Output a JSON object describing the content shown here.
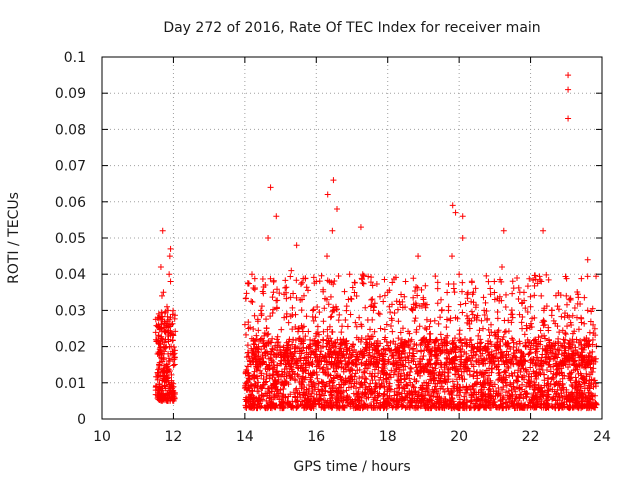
{
  "chart_data": {
    "type": "scatter",
    "title": "Day 272 of 2016, Rate Of TEC Index for receiver main",
    "xlabel": "GPS time / hours",
    "ylabel": "ROTI / TECUs",
    "xlim": [
      10,
      24
    ],
    "ylim": [
      0,
      0.1
    ],
    "x_ticks": [
      "10",
      "12",
      "14",
      "16",
      "18",
      "20",
      "22",
      "24"
    ],
    "y_ticks": [
      "0",
      "0.01",
      "0.02",
      "0.03",
      "0.04",
      "0.05",
      "0.06",
      "0.07",
      "0.08",
      "0.09",
      "0.1"
    ],
    "grid": true,
    "marker": "+",
    "color": "#ff0000",
    "series": [
      {
        "name": "ROTI",
        "x": [
          11.55,
          11.6,
          11.62,
          11.65,
          11.7,
          11.72,
          11.75,
          11.8,
          11.82,
          11.85,
          11.88,
          11.9,
          11.92,
          11.95,
          11.6,
          11.7,
          11.78,
          11.85,
          11.9,
          11.58,
          11.68,
          11.76,
          11.84,
          11.92,
          11.64,
          11.74,
          11.88,
          11.66,
          11.94,
          14.05,
          14.1,
          14.2,
          14.3,
          14.45,
          14.55,
          14.65,
          14.7,
          14.8,
          14.9,
          15.0,
          15.1,
          15.2,
          15.3,
          15.4,
          15.5,
          15.6,
          15.7,
          15.8,
          15.9,
          16.0,
          16.1,
          16.2,
          16.3,
          16.4,
          16.45,
          16.5,
          16.6,
          16.7,
          16.8,
          16.9,
          17.0,
          17.1,
          17.2,
          17.3,
          17.4,
          17.5,
          17.6,
          17.7,
          17.8,
          17.9,
          18.0,
          18.1,
          18.2,
          18.3,
          18.4,
          18.5,
          18.6,
          18.7,
          18.8,
          18.9,
          19.0,
          19.1,
          19.2,
          19.3,
          19.4,
          19.5,
          19.6,
          19.7,
          19.8,
          19.9,
          20.0,
          20.1,
          20.2,
          20.3,
          20.4,
          20.5,
          20.6,
          20.7,
          20.8,
          20.9,
          21.0,
          21.1,
          21.2,
          21.3,
          21.4,
          21.5,
          21.6,
          21.7,
          21.8,
          21.9,
          22.0,
          22.1,
          22.2,
          22.3,
          22.4,
          22.5,
          22.6,
          22.7,
          22.8,
          22.9,
          23.0,
          23.1,
          23.2,
          23.3,
          23.4,
          23.5,
          23.6,
          23.7,
          23.75,
          14.72,
          14.88,
          16.32,
          16.48,
          16.58,
          19.82,
          19.9,
          20.1,
          23.05,
          23.05,
          23.05,
          23.6,
          21.25,
          22.35,
          18.85,
          15.45,
          17.25,
          14.15,
          14.35,
          14.6,
          14.95,
          15.25,
          15.55,
          15.85,
          16.15,
          16.45,
          16.75,
          17.05,
          17.35,
          17.65,
          17.95,
          18.25,
          18.55,
          18.85,
          19.15,
          19.45,
          19.75,
          20.05,
          20.35,
          20.65,
          20.95,
          21.25,
          21.55,
          21.85,
          22.15,
          22.45,
          22.75,
          23.05,
          23.35,
          23.65
        ],
        "y": [
          0.008,
          0.015,
          0.028,
          0.042,
          0.052,
          0.035,
          0.012,
          0.02,
          0.031,
          0.018,
          0.026,
          0.045,
          0.038,
          0.01,
          0.006,
          0.022,
          0.024,
          0.03,
          0.016,
          0.012,
          0.034,
          0.009,
          0.027,
          0.047,
          0.019,
          0.014,
          0.04,
          0.025,
          0.007,
          0.01,
          0.025,
          0.04,
          0.015,
          0.03,
          0.02,
          0.05,
          0.012,
          0.035,
          0.022,
          0.008,
          0.028,
          0.018,
          0.041,
          0.011,
          0.025,
          0.033,
          0.015,
          0.02,
          0.009,
          0.038,
          0.014,
          0.027,
          0.045,
          0.012,
          0.052,
          0.03,
          0.018,
          0.024,
          0.01,
          0.033,
          0.02,
          0.015,
          0.028,
          0.04,
          0.011,
          0.022,
          0.03,
          0.017,
          0.025,
          0.009,
          0.035,
          0.019,
          0.013,
          0.027,
          0.021,
          0.038,
          0.012,
          0.03,
          0.024,
          0.016,
          0.033,
          0.02,
          0.027,
          0.011,
          0.036,
          0.022,
          0.015,
          0.03,
          0.045,
          0.028,
          0.04,
          0.05,
          0.018,
          0.025,
          0.035,
          0.013,
          0.02,
          0.03,
          0.011,
          0.024,
          0.033,
          0.016,
          0.042,
          0.021,
          0.012,
          0.028,
          0.019,
          0.035,
          0.014,
          0.025,
          0.031,
          0.01,
          0.02,
          0.038,
          0.026,
          0.015,
          0.03,
          0.018,
          0.024,
          0.012,
          0.034,
          0.02,
          0.016,
          0.028,
          0.009,
          0.022,
          0.03,
          0.013,
          0.026,
          0.064,
          0.056,
          0.062,
          0.066,
          0.058,
          0.059,
          0.057,
          0.056,
          0.095,
          0.091,
          0.083,
          0.044,
          0.052,
          0.052,
          0.045,
          0.048,
          0.053,
          0.006,
          0.004,
          0.005,
          0.007,
          0.004,
          0.006,
          0.005,
          0.004,
          0.006,
          0.005,
          0.007,
          0.004,
          0.006,
          0.005,
          0.004,
          0.006,
          0.005,
          0.003,
          0.006,
          0.005,
          0.004,
          0.006,
          0.005,
          0.004,
          0.006,
          0.005,
          0.004,
          0.006,
          0.005,
          0.004,
          0.006,
          0.005,
          0.004
        ]
      }
    ],
    "clusters": [
      {
        "x_range": [
          11.5,
          12.05
        ],
        "y_min": 0.005,
        "y_max": 0.03,
        "count": 260
      },
      {
        "x_range": [
          14.0,
          23.85
        ],
        "y_min": 0.003,
        "y_max": 0.022,
        "count": 2600
      },
      {
        "x_range": [
          14.0,
          23.85
        ],
        "y_min": 0.015,
        "y_max": 0.04,
        "count": 900
      }
    ]
  }
}
